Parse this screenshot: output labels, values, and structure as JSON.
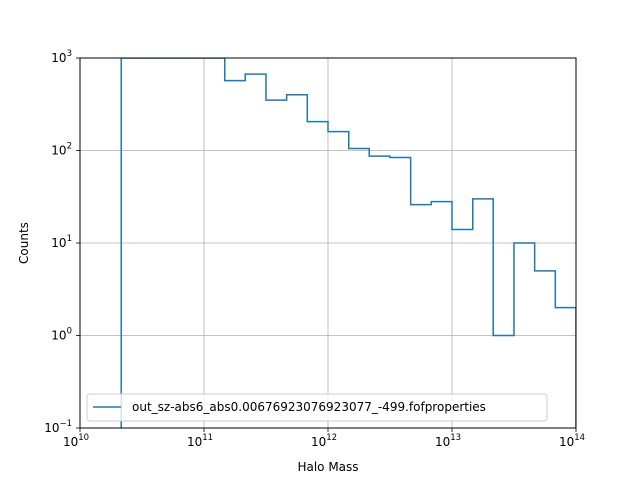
{
  "chart_data": {
    "type": "histogram-step",
    "title": "",
    "xlabel": "Halo Mass",
    "ylabel": "Counts",
    "xscale": "log",
    "yscale": "log",
    "xlim": [
      10000000000.0,
      100000000000000.0
    ],
    "ylim": [
      0.1,
      1000
    ],
    "grid": true,
    "legend_placement": "lower-left",
    "x_ticks": [
      {
        "value": 10000000000.0,
        "base": "10",
        "exp": "10"
      },
      {
        "value": 100000000000.0,
        "base": "10",
        "exp": "11"
      },
      {
        "value": 1000000000000.0,
        "base": "10",
        "exp": "12"
      },
      {
        "value": 10000000000000.0,
        "base": "10",
        "exp": "13"
      },
      {
        "value": 100000000000000.0,
        "base": "10",
        "exp": "14"
      }
    ],
    "y_ticks": [
      {
        "value": 0.1,
        "base": "10",
        "exp": "−1"
      },
      {
        "value": 1,
        "base": "10",
        "exp": "0"
      },
      {
        "value": 10,
        "base": "10",
        "exp": "1"
      },
      {
        "value": 100,
        "base": "10",
        "exp": "2"
      },
      {
        "value": 1000,
        "base": "10",
        "exp": "3"
      }
    ],
    "series": [
      {
        "name": "out_sz-abs6_abs0.00676923076923077_-499.fofproperties",
        "color": "#1f77b4",
        "bin_edges": [
          21500000000.0,
          147000000000.0,
          215000000000.0,
          316000000000.0,
          464000000000.0,
          681000000000.0,
          1000000000000.0,
          1470000000000.0,
          2150000000000.0,
          3160000000000.0,
          4640000000000.0,
          6810000000000.0,
          10000000000000.0,
          14700000000000.0,
          21500000000000.0,
          31600000000000.0,
          46400000000000.0,
          68100000000000.0,
          100000000000000.0
        ],
        "counts": [
          5000,
          570,
          670,
          350,
          400,
          205,
          160,
          105,
          87,
          84,
          26,
          28,
          14,
          30,
          1,
          10,
          5,
          2
        ]
      }
    ]
  }
}
